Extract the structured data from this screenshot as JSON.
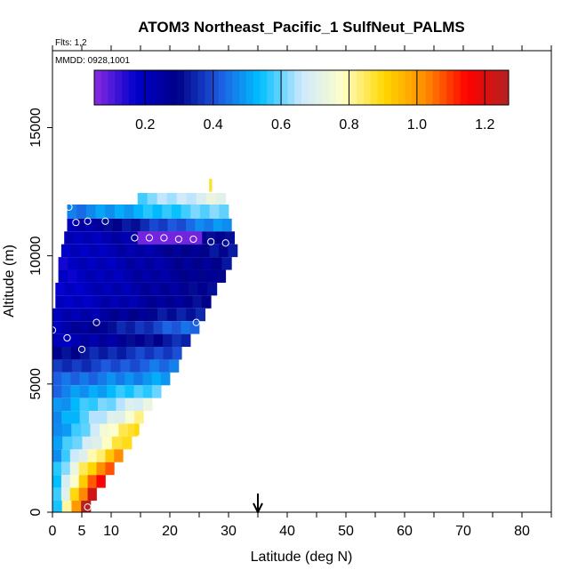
{
  "chart_data": {
    "type": "heatmap",
    "title": "ATOM3 Northeast_Pacific_1 SulfNeut_PALMS",
    "flights_label": "Flts: 1,2",
    "dates_label": "MMDD: 0928,1001",
    "xlabel": "Latitude (deg N)",
    "ylabel": "Altitude (m)",
    "xlim": [
      0,
      85
    ],
    "ylim": [
      0,
      18000
    ],
    "x_ticks": [
      "0",
      "5",
      "10",
      "20",
      "30",
      "40",
      "50",
      "60",
      "70",
      "80"
    ],
    "y_ticks": [
      "0",
      "5000",
      "10000",
      "15000"
    ],
    "colorbar": {
      "range": [
        0.05,
        1.27
      ],
      "ticks": [
        "0.2",
        "0.4",
        "0.6",
        "0.8",
        "1.0",
        "1.2"
      ],
      "colors": [
        "#8a2be2",
        "#0000cd",
        "#000088",
        "#1e5ae0",
        "#00bfff",
        "#cce8ff",
        "#ffffc8",
        "#ffd700",
        "#ff8c00",
        "#ff0000",
        "#b22222"
      ]
    },
    "arrow_latitude": 35,
    "rows": [
      {
        "alt_lo": 11900,
        "alt_hi": 12450,
        "lat_lo": 14.5,
        "lat_hi": 29.5,
        "left_value": 0.6,
        "right_value": 0.72
      },
      {
        "alt_lo": 11450,
        "alt_hi": 12000,
        "lat_lo": 2.5,
        "lat_hi": 30,
        "left_value": 0.45,
        "right_value": 0.62
      },
      {
        "alt_lo": 10950,
        "alt_hi": 11450,
        "lat_lo": 2.5,
        "lat_hi": 30.5,
        "left_value": 0.22,
        "right_value": 0.5
      },
      {
        "alt_lo": 10450,
        "alt_hi": 10950,
        "lat_lo": 2.0,
        "lat_hi": 31,
        "left_value": 0.2,
        "right_value": 0.3
      },
      {
        "alt_lo": 9950,
        "alt_hi": 10450,
        "lat_lo": 1.5,
        "lat_hi": 31.5,
        "left_value": 0.18,
        "right_value": 0.32
      },
      {
        "alt_lo": 9450,
        "alt_hi": 9950,
        "lat_lo": 1.0,
        "lat_hi": 30.5,
        "left_value": 0.18,
        "right_value": 0.3
      },
      {
        "alt_lo": 8950,
        "alt_hi": 9450,
        "lat_lo": 1.0,
        "lat_hi": 29.5,
        "left_value": 0.18,
        "right_value": 0.3
      },
      {
        "alt_lo": 8450,
        "alt_hi": 8950,
        "lat_lo": 0.5,
        "lat_hi": 28.0,
        "left_value": 0.18,
        "right_value": 0.3
      },
      {
        "alt_lo": 7950,
        "alt_hi": 8450,
        "lat_lo": 0.5,
        "lat_hi": 27.0,
        "left_value": 0.18,
        "right_value": 0.3
      },
      {
        "alt_lo": 7450,
        "alt_hi": 7950,
        "lat_lo": 0.0,
        "lat_hi": 26.0,
        "left_value": 0.2,
        "right_value": 0.35
      },
      {
        "alt_lo": 6950,
        "alt_hi": 7450,
        "lat_lo": 0.0,
        "lat_hi": 25.0,
        "left_value": 0.22,
        "right_value": 0.45
      },
      {
        "alt_lo": 6450,
        "alt_hi": 6950,
        "lat_lo": 0.0,
        "lat_hi": 23.5,
        "left_value": 0.2,
        "right_value": 0.35
      },
      {
        "alt_lo": 5950,
        "alt_hi": 6450,
        "lat_lo": 0.0,
        "lat_hi": 22.0,
        "left_value": 0.3,
        "right_value": 0.4
      },
      {
        "alt_lo": 5450,
        "alt_hi": 5950,
        "lat_lo": 0.0,
        "lat_hi": 21.5,
        "left_value": 0.35,
        "right_value": 0.45
      },
      {
        "alt_lo": 4950,
        "alt_hi": 5450,
        "lat_lo": 0.0,
        "lat_hi": 20.0,
        "left_value": 0.42,
        "right_value": 0.5
      },
      {
        "alt_lo": 4450,
        "alt_hi": 4950,
        "lat_lo": 0.0,
        "lat_hi": 18.5,
        "left_value": 0.45,
        "right_value": 0.6
      },
      {
        "alt_lo": 3950,
        "alt_hi": 4450,
        "lat_lo": 0.0,
        "lat_hi": 17.0,
        "left_value": 0.48,
        "right_value": 0.72
      },
      {
        "alt_lo": 3450,
        "alt_hi": 3950,
        "lat_lo": 0.0,
        "lat_hi": 15.5,
        "left_value": 0.48,
        "right_value": 0.8
      },
      {
        "alt_lo": 2950,
        "alt_hi": 3450,
        "lat_lo": 0.0,
        "lat_hi": 14.5,
        "left_value": 0.45,
        "right_value": 0.9
      },
      {
        "alt_lo": 2450,
        "alt_hi": 2950,
        "lat_lo": 0.0,
        "lat_hi": 13.5,
        "left_value": 0.5,
        "right_value": 0.9
      },
      {
        "alt_lo": 1950,
        "alt_hi": 2450,
        "lat_lo": 0.0,
        "lat_hi": 12.0,
        "left_value": 0.5,
        "right_value": 1.0
      },
      {
        "alt_lo": 1450,
        "alt_hi": 1950,
        "lat_lo": 0.0,
        "lat_hi": 10.5,
        "left_value": 0.55,
        "right_value": 1.1
      },
      {
        "alt_lo": 950,
        "alt_hi": 1450,
        "lat_lo": 0.0,
        "lat_hi": 9.0,
        "left_value": 0.55,
        "right_value": 1.17
      },
      {
        "alt_lo": 450,
        "alt_hi": 950,
        "lat_lo": 0.0,
        "lat_hi": 7.5,
        "left_value": 0.55,
        "right_value": 1.22
      },
      {
        "alt_lo": 0,
        "alt_hi": 450,
        "lat_lo": 0.0,
        "lat_hi": 6.5,
        "left_value": 0.55,
        "right_value": 1.25
      }
    ],
    "patches": [
      {
        "alt_lo": 10450,
        "alt_hi": 10950,
        "lat_lo": 14.5,
        "lat_hi": 25.5,
        "value": 0.07
      },
      {
        "alt_lo": 3000,
        "alt_hi": 3450,
        "lat_lo": 14.0,
        "lat_hi": 14.8,
        "value": 0.9
      },
      {
        "alt_lo": 12500,
        "alt_hi": 13000,
        "lat_lo": 26.7,
        "lat_hi": 27.2,
        "value": 0.88
      }
    ],
    "points": [
      {
        "lat": 2.8,
        "alt": 11900
      },
      {
        "lat": 4.0,
        "alt": 11300
      },
      {
        "lat": 6.0,
        "alt": 11350
      },
      {
        "lat": 9.0,
        "alt": 11350
      },
      {
        "lat": 14.0,
        "alt": 10700
      },
      {
        "lat": 16.5,
        "alt": 10700
      },
      {
        "lat": 19.0,
        "alt": 10700
      },
      {
        "lat": 21.5,
        "alt": 10650
      },
      {
        "lat": 24.0,
        "alt": 10650
      },
      {
        "lat": 27.0,
        "alt": 10550
      },
      {
        "lat": 29.5,
        "alt": 10500
      },
      {
        "lat": 0.0,
        "alt": 7100
      },
      {
        "lat": 7.5,
        "alt": 7400
      },
      {
        "lat": 24.5,
        "alt": 7400
      },
      {
        "lat": 2.5,
        "alt": 6800
      },
      {
        "lat": 5.0,
        "alt": 6350
      },
      {
        "lat": 6.0,
        "alt": 200
      }
    ]
  }
}
